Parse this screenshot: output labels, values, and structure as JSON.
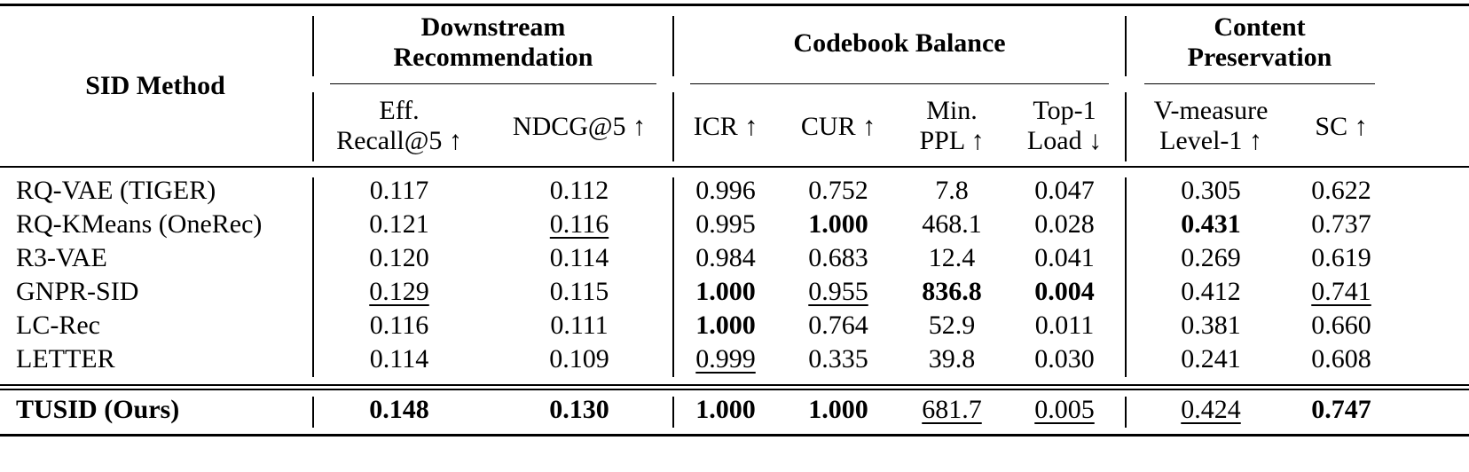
{
  "table": {
    "corner": "SID Method",
    "groups": [
      {
        "label": [
          "Downstream",
          "Recommendation"
        ]
      },
      {
        "label": [
          "Codebook Balance"
        ]
      },
      {
        "label": [
          "Content",
          "Preservation"
        ]
      }
    ],
    "columns": [
      [
        "Eff.",
        "Recall@5 ↑"
      ],
      [
        "NDCG@5 ↑"
      ],
      [
        "ICR ↑"
      ],
      [
        "CUR ↑"
      ],
      [
        "Min.",
        "PPL ↑"
      ],
      [
        "Top-1",
        "Load ↓"
      ],
      [
        "V-measure",
        "Level-1 ↑"
      ],
      [
        "SC ↑"
      ]
    ],
    "rows": [
      {
        "method": "RQ-VAE (TIGER)",
        "cells": [
          "0.117",
          "0.112",
          "0.996",
          "0.752",
          "7.8",
          "0.047",
          "0.305",
          "0.622"
        ]
      },
      {
        "method": "RQ-KMeans (OneRec)",
        "cells": [
          "0.121",
          {
            "text": "0.116",
            "style": "underline"
          },
          "0.995",
          {
            "text": "1.000",
            "style": "bold"
          },
          "468.1",
          "0.028",
          {
            "text": "0.431",
            "style": "bold"
          },
          "0.737"
        ]
      },
      {
        "method": "R3-VAE",
        "cells": [
          "0.120",
          "0.114",
          "0.984",
          "0.683",
          "12.4",
          "0.041",
          "0.269",
          "0.619"
        ]
      },
      {
        "method": "GNPR-SID",
        "cells": [
          {
            "text": "0.129",
            "style": "underline"
          },
          "0.115",
          {
            "text": "1.000",
            "style": "bold"
          },
          {
            "text": "0.955",
            "style": "underline"
          },
          {
            "text": "836.8",
            "style": "bold"
          },
          {
            "text": "0.004",
            "style": "bold"
          },
          "0.412",
          {
            "text": "0.741",
            "style": "underline"
          }
        ]
      },
      {
        "method": "LC-Rec",
        "cells": [
          "0.116",
          "0.111",
          {
            "text": "1.000",
            "style": "bold"
          },
          "0.764",
          "52.9",
          "0.011",
          "0.381",
          "0.660"
        ]
      },
      {
        "method": "LETTER",
        "cells": [
          "0.114",
          "0.109",
          {
            "text": "0.999",
            "style": "underline"
          },
          "0.335",
          "39.8",
          "0.030",
          "0.241",
          "0.608"
        ]
      },
      {
        "method": {
          "text": "TUSID (Ours)",
          "style": "bold"
        },
        "cells": [
          {
            "text": "0.148",
            "style": "bold"
          },
          {
            "text": "0.130",
            "style": "bold"
          },
          {
            "text": "1.000",
            "style": "bold"
          },
          {
            "text": "1.000",
            "style": "bold"
          },
          {
            "text": "681.7",
            "style": "underline"
          },
          {
            "text": "0.005",
            "style": "underline"
          },
          {
            "text": "0.424",
            "style": "underline"
          },
          {
            "text": "0.747",
            "style": "bold"
          }
        ]
      }
    ]
  }
}
